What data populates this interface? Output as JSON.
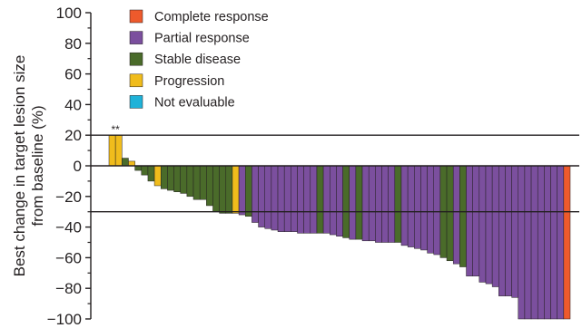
{
  "chart_data": {
    "type": "bar",
    "title": "",
    "ylabel": "Best change in target lesion size from baseline (%)",
    "ylabel_lines": [
      "Best change in target lesion size",
      "from baseline (%)"
    ],
    "xlabel": "",
    "ylim": [
      -100,
      100
    ],
    "yticks": [
      100,
      80,
      60,
      40,
      20,
      0,
      -20,
      -40,
      -60,
      -80,
      -100
    ],
    "ytick_labels": [
      "100",
      "80",
      "60",
      "40",
      "20",
      "0",
      "−20",
      "−40",
      "−60",
      "−80",
      "−100"
    ],
    "reference_lines": [
      20,
      0,
      -30
    ],
    "legend_position": "top-left",
    "categories_legend": [
      {
        "key": "CR",
        "label": "Complete response",
        "color": "#ee5a2c"
      },
      {
        "key": "PR",
        "label": "Partial response",
        "color": "#7b4f9e"
      },
      {
        "key": "SD",
        "label": "Stable disease",
        "color": "#4a6b2a"
      },
      {
        "key": "PD",
        "label": "Progression",
        "color": "#f0bc1c"
      },
      {
        "key": "NE",
        "label": "Not evaluable",
        "color": "#1fb2d8"
      }
    ],
    "annotation": {
      "text": "**",
      "at_bar": 0
    },
    "bars": [
      {
        "value": 20,
        "response": "PD"
      },
      {
        "value": 20,
        "response": "PD"
      },
      {
        "value": 5,
        "response": "SD"
      },
      {
        "value": 3,
        "response": "PD"
      },
      {
        "value": -3,
        "response": "SD"
      },
      {
        "value": -6,
        "response": "SD"
      },
      {
        "value": -10,
        "response": "SD"
      },
      {
        "value": -13,
        "response": "PD"
      },
      {
        "value": -15,
        "response": "SD"
      },
      {
        "value": -16,
        "response": "SD"
      },
      {
        "value": -17,
        "response": "SD"
      },
      {
        "value": -18,
        "response": "SD"
      },
      {
        "value": -20,
        "response": "SD"
      },
      {
        "value": -22,
        "response": "SD"
      },
      {
        "value": -22,
        "response": "SD"
      },
      {
        "value": -26,
        "response": "SD"
      },
      {
        "value": -30,
        "response": "SD"
      },
      {
        "value": -31,
        "response": "SD"
      },
      {
        "value": -31,
        "response": "SD"
      },
      {
        "value": -31,
        "response": "PD"
      },
      {
        "value": -32,
        "response": "PR"
      },
      {
        "value": -33,
        "response": "SD"
      },
      {
        "value": -37,
        "response": "PR"
      },
      {
        "value": -40,
        "response": "PR"
      },
      {
        "value": -41,
        "response": "PR"
      },
      {
        "value": -42,
        "response": "PR"
      },
      {
        "value": -43,
        "response": "PR"
      },
      {
        "value": -43,
        "response": "PR"
      },
      {
        "value": -43,
        "response": "PR"
      },
      {
        "value": -44,
        "response": "PR"
      },
      {
        "value": -44,
        "response": "PR"
      },
      {
        "value": -44,
        "response": "PR"
      },
      {
        "value": -44,
        "response": "SD"
      },
      {
        "value": -44,
        "response": "PR"
      },
      {
        "value": -45,
        "response": "PR"
      },
      {
        "value": -46,
        "response": "PR"
      },
      {
        "value": -47,
        "response": "SD"
      },
      {
        "value": -48,
        "response": "PR"
      },
      {
        "value": -48,
        "response": "SD"
      },
      {
        "value": -49,
        "response": "PR"
      },
      {
        "value": -49,
        "response": "PR"
      },
      {
        "value": -50,
        "response": "PR"
      },
      {
        "value": -50,
        "response": "PR"
      },
      {
        "value": -50,
        "response": "PR"
      },
      {
        "value": -50,
        "response": "SD"
      },
      {
        "value": -52,
        "response": "PR"
      },
      {
        "value": -53,
        "response": "PR"
      },
      {
        "value": -54,
        "response": "PR"
      },
      {
        "value": -55,
        "response": "PR"
      },
      {
        "value": -57,
        "response": "PR"
      },
      {
        "value": -58,
        "response": "PR"
      },
      {
        "value": -60,
        "response": "SD"
      },
      {
        "value": -62,
        "response": "SD"
      },
      {
        "value": -64,
        "response": "PR"
      },
      {
        "value": -66,
        "response": "SD"
      },
      {
        "value": -72,
        "response": "PR"
      },
      {
        "value": -72,
        "response": "PR"
      },
      {
        "value": -76,
        "response": "PR"
      },
      {
        "value": -77,
        "response": "PR"
      },
      {
        "value": -79,
        "response": "PR"
      },
      {
        "value": -85,
        "response": "PR"
      },
      {
        "value": -85,
        "response": "PR"
      },
      {
        "value": -86,
        "response": "PR"
      },
      {
        "value": -100,
        "response": "PR"
      },
      {
        "value": -100,
        "response": "PR"
      },
      {
        "value": -100,
        "response": "PR"
      },
      {
        "value": -100,
        "response": "PR"
      },
      {
        "value": -100,
        "response": "PR"
      },
      {
        "value": -100,
        "response": "PR"
      },
      {
        "value": -100,
        "response": "PR"
      },
      {
        "value": -100,
        "response": "CR"
      }
    ]
  }
}
